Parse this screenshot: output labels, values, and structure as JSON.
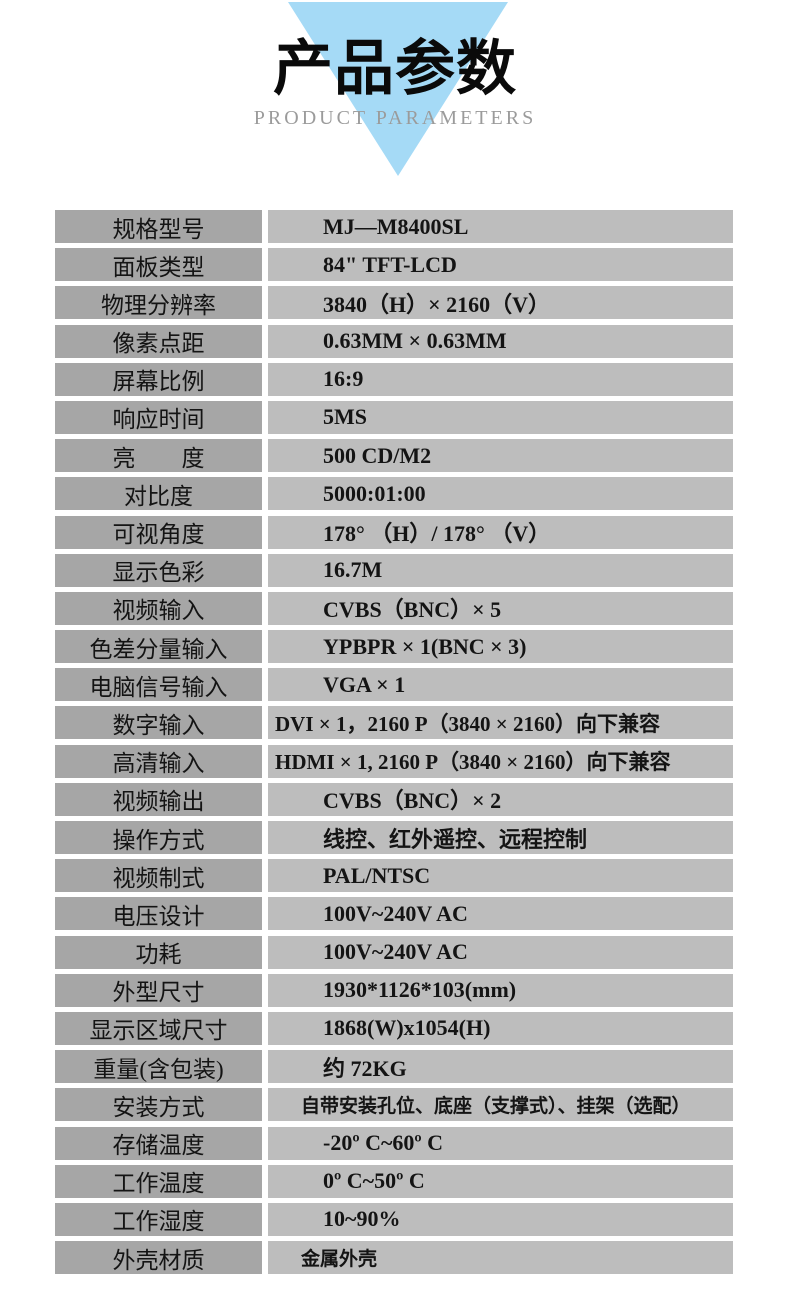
{
  "colors": {
    "page-bg": "#ffffff",
    "triangle": "#a5daf6",
    "title": "#0a0a0a",
    "subtitle": "#9b9b9b",
    "label-bg": "#a6a6a6",
    "value-bg": "#bdbdbd",
    "row-text": "#141414"
  },
  "header": {
    "title": "产品参数",
    "subtitle": "PRODUCT PARAMETERS"
  },
  "table": {
    "rows": [
      {
        "label": "规格型号",
        "value": "MJ—M8400SL"
      },
      {
        "label": "面板类型",
        "value": "84\" TFT-LCD"
      },
      {
        "label": "物理分辨率",
        "value": "3840（H）× 2160（V）"
      },
      {
        "label": "像素点距",
        "value": "0.63MM × 0.63MM"
      },
      {
        "label": "屏幕比例",
        "value": "16:9"
      },
      {
        "label": "响应时间",
        "value": "5MS"
      },
      {
        "label": "亮　　度",
        "value": "500 CD/M2"
      },
      {
        "label": "对比度",
        "value": "5000:01:00"
      },
      {
        "label": "可视角度",
        "value": "178° （H）/ 178° （V）"
      },
      {
        "label": "显示色彩",
        "value": "16.7M"
      },
      {
        "label": "视频输入",
        "value": "CVBS（BNC）× 5"
      },
      {
        "label": "色差分量输入",
        "value": "YPBPR × 1(BNC × 3)"
      },
      {
        "label": "电脑信号输入",
        "value": "VGA × 1"
      },
      {
        "label": "数字输入",
        "value": "DVI × 1，2160 P（3840 × 2160）向下兼容",
        "variant": "tight"
      },
      {
        "label": "高清输入",
        "value": "HDMI × 1, 2160 P（3840 × 2160）向下兼容",
        "variant": "tight"
      },
      {
        "label": "视频输出",
        "value": "CVBS（BNC）× 2"
      },
      {
        "label": "操作方式",
        "value": "线控、红外遥控、远程控制"
      },
      {
        "label": "视频制式",
        "value": "PAL/NTSC"
      },
      {
        "label": "电压设计",
        "value": "100V~240V AC"
      },
      {
        "label": "功耗",
        "value": "100V~240V AC"
      },
      {
        "label": "外型尺寸",
        "value": "1930*1126*103(mm)"
      },
      {
        "label": "显示区域尺寸",
        "value": "1868(W)x1054(H)"
      },
      {
        "label": "重量(含包装)",
        "value": "约 72KG"
      },
      {
        "label": "安装方式",
        "value": "自带安装孔位、底座（支撑式）、挂架（选配）",
        "variant": "small"
      },
      {
        "label": "存储温度",
        "value": "-20º C~60º C"
      },
      {
        "label": "工作温度",
        "value": "0º C~50º C"
      },
      {
        "label": "工作湿度",
        "value": "10~90%"
      },
      {
        "label": "外壳材质",
        "value": "金属外壳",
        "variant": "small"
      }
    ]
  }
}
